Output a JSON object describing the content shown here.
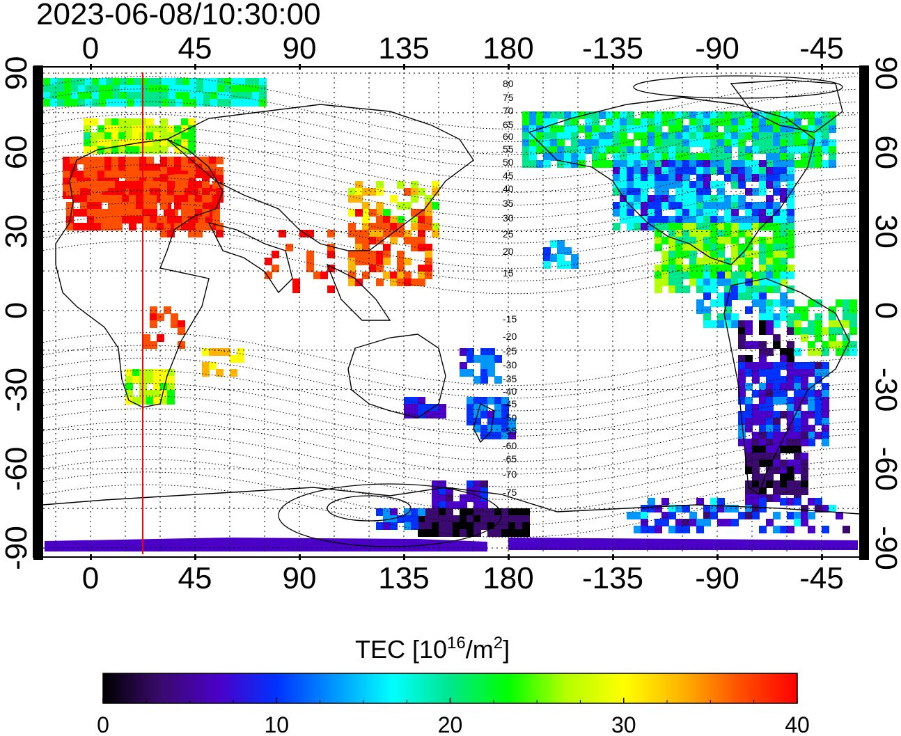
{
  "timestamp": "2023-06-08/10:30:00",
  "map": {
    "lon_ticks_top": [
      "0",
      "45",
      "90",
      "135",
      "180",
      "-135",
      "-90",
      "-45"
    ],
    "lon_ticks_bottom": [
      "0",
      "45",
      "90",
      "135",
      "180",
      "-135",
      "-90",
      "-45"
    ],
    "lat_ticks_left": [
      "90",
      "60",
      "30",
      "0",
      "-30",
      "-60",
      "-90"
    ],
    "lat_ticks_right": [
      "90",
      "60",
      "30",
      "0",
      "-30",
      "-60",
      "-90"
    ],
    "magnetic_latitude_labels": [
      "80",
      "75",
      "70",
      "65",
      "60",
      "55",
      "50",
      "45",
      "40",
      "35",
      "30",
      "25",
      "20",
      "15",
      "-15",
      "-20",
      "-25",
      "-30",
      "-35",
      "-40",
      "-45",
      "-50",
      "-55",
      "-60",
      "-65",
      "-70",
      "-75"
    ],
    "sun_meridian_color": "#ff0000"
  },
  "colorbar": {
    "title_main": "TEC  [10",
    "title_exp": "16",
    "title_mid": "/m",
    "title_exp2": "2",
    "title_end": "]",
    "ticks": [
      "0",
      "10",
      "20",
      "30",
      "40"
    ],
    "range": [
      0,
      40
    ],
    "colors": [
      "#000000",
      "#3a0a6e",
      "#4b00c8",
      "#0032ff",
      "#0096ff",
      "#00ffff",
      "#00e68c",
      "#00ff00",
      "#b4ff00",
      "#ffff00",
      "#ffb400",
      "#ff5000",
      "#ff0000"
    ]
  }
}
